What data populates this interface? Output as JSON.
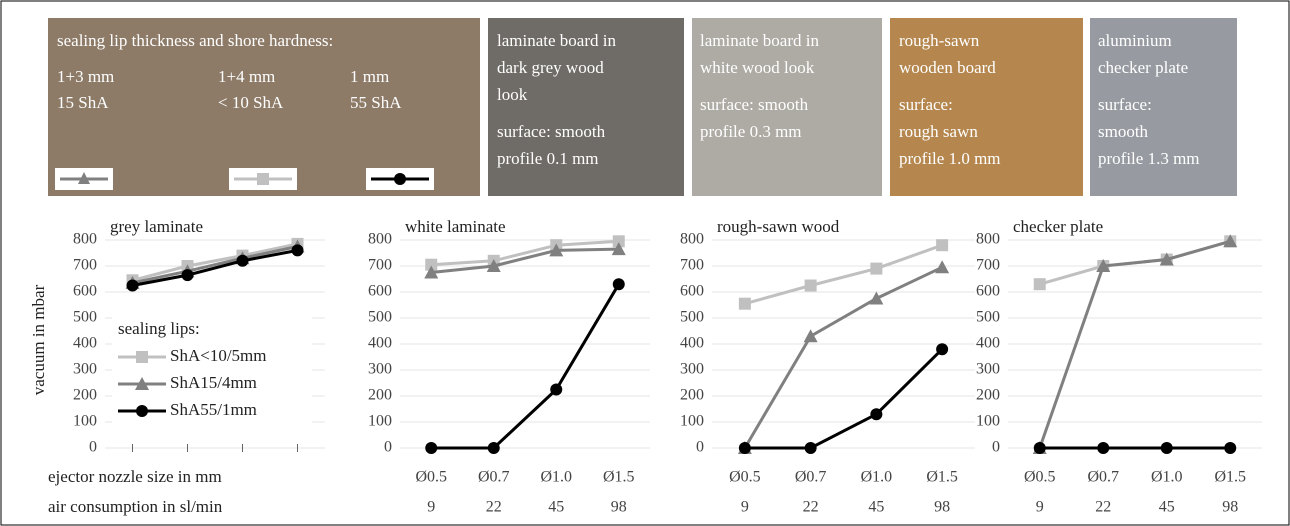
{
  "photos": [
    {
      "title": "sealing lip thickness and shore hardness:",
      "columns": [
        [
          "1+3 mm",
          "15 ShA"
        ],
        [
          "1+4 mm",
          "< 10 ShA"
        ],
        [
          "1 mm",
          "55 ShA"
        ]
      ]
    },
    {
      "lines": [
        [
          "laminate board in",
          "dark grey wood",
          "look"
        ],
        [
          "surface: smooth",
          "profile 0.1 mm"
        ]
      ]
    },
    {
      "lines": [
        [
          "laminate board in",
          "white wood look"
        ],
        [
          "surface: smooth",
          "profile 0.3 mm"
        ]
      ]
    },
    {
      "lines": [
        [
          "rough-sawn",
          "wooden board"
        ],
        [
          "surface:",
          "rough sawn",
          "profile 1.0 mm"
        ]
      ]
    },
    {
      "lines": [
        [
          "aluminium",
          "checker plate"
        ],
        [
          "surface:",
          "smooth",
          "profile 1.3 mm"
        ]
      ]
    }
  ],
  "chart_data": [
    {
      "type": "line",
      "title": "grey laminate",
      "ylabel": "vacuum in mbar",
      "xlabel": [
        "ejector nozzle size in mm",
        "air consumption in sl/min"
      ],
      "categories": [
        null,
        null,
        null,
        null
      ],
      "ylim": [
        0,
        800
      ],
      "yticks": [
        0,
        100,
        200,
        300,
        400,
        500,
        600,
        700,
        800
      ],
      "grid": true,
      "xtick_marks": true,
      "legend_title": "sealing lips:",
      "series": [
        {
          "name": "ShA<10/5mm",
          "color": "#c0c0c0",
          "marker": "square",
          "values": [
            645,
            700,
            740,
            785
          ]
        },
        {
          "name": "ShA15/4mm",
          "color": "#808080",
          "marker": "triangle",
          "values": [
            635,
            680,
            730,
            775
          ]
        },
        {
          "name": "ShA55/1mm",
          "color": "#000000",
          "marker": "circle",
          "values": [
            625,
            665,
            720,
            760
          ]
        }
      ]
    },
    {
      "type": "line",
      "title": "white laminate",
      "categories": [
        "Ø0.5",
        "Ø0.7",
        "Ø1.0",
        "Ø1.5"
      ],
      "categories2": [
        "9",
        "22",
        "45",
        "98"
      ],
      "ylim": [
        0,
        800
      ],
      "yticks": [
        0,
        100,
        200,
        300,
        400,
        500,
        600,
        700,
        800
      ],
      "grid": true,
      "series": [
        {
          "color": "#c0c0c0",
          "marker": "square",
          "values": [
            705,
            720,
            780,
            795
          ]
        },
        {
          "color": "#808080",
          "marker": "triangle",
          "values": [
            675,
            700,
            760,
            765
          ]
        },
        {
          "color": "#000000",
          "marker": "circle",
          "values": [
            0,
            0,
            225,
            630
          ]
        }
      ]
    },
    {
      "type": "line",
      "title": "rough-sawn wood",
      "categories": [
        "Ø0.5",
        "Ø0.7",
        "Ø1.0",
        "Ø1.5"
      ],
      "categories2": [
        "9",
        "22",
        "45",
        "98"
      ],
      "ylim": [
        0,
        800
      ],
      "yticks": [
        0,
        100,
        200,
        300,
        400,
        500,
        600,
        700,
        800
      ],
      "grid": true,
      "series": [
        {
          "color": "#c0c0c0",
          "marker": "square",
          "values": [
            555,
            625,
            690,
            780
          ]
        },
        {
          "color": "#808080",
          "marker": "triangle",
          "values": [
            0,
            430,
            575,
            695
          ]
        },
        {
          "color": "#000000",
          "marker": "circle",
          "values": [
            0,
            0,
            130,
            380
          ]
        }
      ]
    },
    {
      "type": "line",
      "title": "checker plate",
      "categories": [
        "Ø0.5",
        "Ø0.7",
        "Ø1.0",
        "Ø1.5"
      ],
      "categories2": [
        "9",
        "22",
        "45",
        "98"
      ],
      "ylim": [
        0,
        800
      ],
      "yticks": [
        0,
        100,
        200,
        300,
        400,
        500,
        600,
        700,
        800
      ],
      "grid": true,
      "series": [
        {
          "color": "#c0c0c0",
          "marker": "square",
          "values": [
            630,
            700,
            725,
            795
          ]
        },
        {
          "color": "#808080",
          "marker": "triangle",
          "values": [
            0,
            700,
            725,
            795
          ]
        },
        {
          "color": "#000000",
          "marker": "circle",
          "values": [
            0,
            0,
            0,
            0
          ]
        }
      ]
    }
  ]
}
